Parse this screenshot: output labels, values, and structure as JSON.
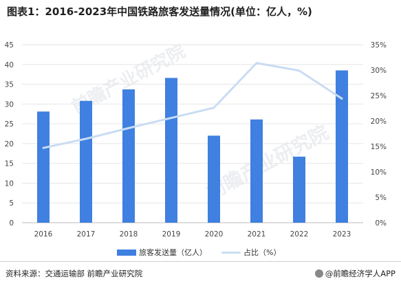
{
  "title": "图表1：2016-2023年中国铁路旅客发送量情况(单位：亿人，%)",
  "source": "资料来源：交通运输部 前瞻产业研究院",
  "brand": "@前瞻经济学人APP",
  "watermark": "前瞻产业研究院",
  "colors": {
    "bar": "#3f80e0",
    "line": "#c9dcf3",
    "grid": "#e6e6e6"
  },
  "chart_data": {
    "type": "bar",
    "categories": [
      "2016",
      "2017",
      "2018",
      "2019",
      "2020",
      "2021",
      "2022",
      "2023"
    ],
    "series": [
      {
        "name": "旅客发送量（亿人）",
        "type": "bar",
        "axis": "left",
        "values": [
          28.1,
          30.8,
          33.7,
          36.6,
          22.0,
          26.1,
          16.7,
          38.5
        ]
      },
      {
        "name": "占比（%）",
        "type": "line",
        "axis": "right",
        "values": [
          14.7,
          16.5,
          18.6,
          20.6,
          22.6,
          31.4,
          29.9,
          24.4
        ]
      }
    ],
    "ylim_left": [
      0,
      45
    ],
    "yticks_left": [
      "0",
      "5",
      "10",
      "15",
      "20",
      "25",
      "30",
      "35",
      "40",
      "45"
    ],
    "ylim_right": [
      0,
      35
    ],
    "yticks_right": [
      "0%",
      "5%",
      "10%",
      "15%",
      "20%",
      "25%",
      "30%",
      "35%"
    ],
    "grid": true,
    "legend_position": "bottom"
  }
}
